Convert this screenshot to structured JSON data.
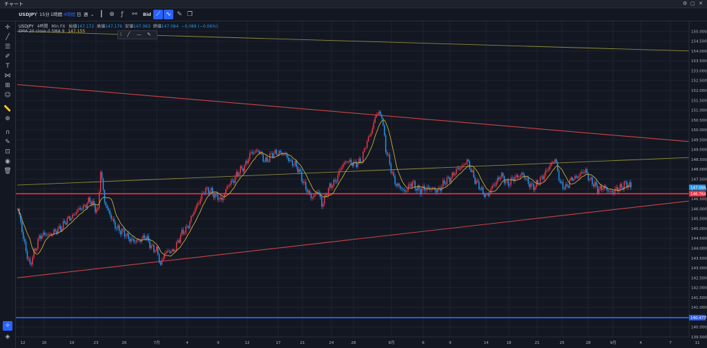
{
  "window": {
    "title": "チャート"
  },
  "toolbar": {
    "symbol": "USDJPY",
    "timeframes": [
      "15分",
      "1時間",
      "4時間",
      "日",
      "週"
    ],
    "active_timeframe": "4時間",
    "price_source": "Bid"
  },
  "legend": {
    "symbol": "USDJPY",
    "interval": "4時間",
    "broker": "Min FX",
    "open_label": "始値",
    "open_value": "147.172",
    "high_label": "高値",
    "high_value": "147.176",
    "low_label": "安値",
    "low_value": "147.063",
    "close_label": "終値",
    "close_value": "147.084",
    "change": "−0.089 (−0.06%)",
    "indicator_label": "EMA 20 close 0 SMA 9",
    "indicator_value": "147.155"
  },
  "chart_data": {
    "type": "candlestick",
    "symbol": "USDJPY",
    "interval": "4時間",
    "y_range": [
      139.5,
      155.5
    ],
    "y_ticks": [
      "155.000",
      "154.500",
      "154.000",
      "153.500",
      "153.000",
      "152.500",
      "152.000",
      "151.500",
      "151.000",
      "150.500",
      "150.000",
      "149.500",
      "149.000",
      "148.500",
      "148.000",
      "147.500",
      "147.000",
      "146.500",
      "146.000",
      "145.500",
      "145.000",
      "144.500",
      "144.000",
      "143.500",
      "143.000",
      "142.500",
      "142.000",
      "141.500",
      "141.000",
      "140.500",
      "140.000",
      "139.500"
    ],
    "x_ticks": [
      "12",
      "16",
      "19",
      "23",
      "26",
      "7月",
      "4",
      "9",
      "12",
      "17",
      "21",
      "24",
      "28",
      "8月",
      "6",
      "9",
      "14",
      "18",
      "21",
      "25",
      "28",
      "9月",
      "4",
      "7",
      "11"
    ],
    "path": [
      [
        0,
        146.0
      ],
      [
        4,
        144.5
      ],
      [
        9,
        143.1
      ],
      [
        16,
        144.6
      ],
      [
        28,
        144.8
      ],
      [
        40,
        145.6
      ],
      [
        54,
        146.4
      ],
      [
        60,
        145.9
      ],
      [
        62,
        147.9
      ],
      [
        65,
        146.4
      ],
      [
        72,
        145.2
      ],
      [
        82,
        144.6
      ],
      [
        88,
        144.3
      ],
      [
        95,
        144.6
      ],
      [
        100,
        144.1
      ],
      [
        104,
        143.9
      ],
      [
        107,
        143.1
      ],
      [
        110,
        143.8
      ],
      [
        116,
        143.8
      ],
      [
        122,
        144.6
      ],
      [
        128,
        145.2
      ],
      [
        135,
        146.3
      ],
      [
        140,
        146.9
      ],
      [
        144,
        147.0
      ],
      [
        148,
        146.6
      ],
      [
        153,
        146.5
      ],
      [
        158,
        147.2
      ],
      [
        163,
        147.6
      ],
      [
        170,
        148.2
      ],
      [
        175,
        148.8
      ],
      [
        180,
        149.0
      ],
      [
        185,
        148.4
      ],
      [
        190,
        148.7
      ],
      [
        196,
        148.9
      ],
      [
        202,
        148.6
      ],
      [
        208,
        148.2
      ],
      [
        212,
        147.8
      ],
      [
        216,
        147.0
      ],
      [
        220,
        146.6
      ],
      [
        225,
        146.9
      ],
      [
        228,
        146.2
      ],
      [
        232,
        146.9
      ],
      [
        238,
        147.4
      ],
      [
        242,
        148.0
      ],
      [
        247,
        148.5
      ],
      [
        252,
        148.2
      ],
      [
        258,
        148.5
      ],
      [
        262,
        149.4
      ],
      [
        266,
        150.1
      ],
      [
        269,
        150.8
      ],
      [
        273,
        150.8
      ],
      [
        276,
        149.0
      ],
      [
        280,
        148.0
      ],
      [
        284,
        147.2
      ],
      [
        290,
        146.9
      ],
      [
        296,
        147.3
      ],
      [
        302,
        146.9
      ],
      [
        308,
        147.1
      ],
      [
        314,
        146.9
      ],
      [
        320,
        147.3
      ],
      [
        326,
        147.7
      ],
      [
        332,
        148.1
      ],
      [
        337,
        148.4
      ],
      [
        341,
        147.8
      ],
      [
        345,
        147.2
      ],
      [
        349,
        146.8
      ],
      [
        353,
        146.7
      ],
      [
        357,
        147.2
      ],
      [
        362,
        147.7
      ],
      [
        367,
        147.3
      ],
      [
        372,
        147.5
      ],
      [
        378,
        147.8
      ],
      [
        383,
        147.3
      ],
      [
        388,
        147.1
      ],
      [
        393,
        147.6
      ],
      [
        398,
        148.0
      ],
      [
        403,
        148.6
      ],
      [
        407,
        147.2
      ],
      [
        411,
        147.1
      ],
      [
        416,
        147.5
      ],
      [
        421,
        147.7
      ],
      [
        426,
        147.9
      ],
      [
        431,
        147.3
      ],
      [
        435,
        147.0
      ],
      [
        439,
        147.1
      ],
      [
        443,
        146.9
      ],
      [
        447,
        146.9
      ],
      [
        451,
        147.0
      ],
      [
        455,
        147.3
      ],
      [
        460,
        147.1
      ]
    ],
    "channel_upper": [
      [
        25,
        152.3
      ],
      [
        1000,
        149.4
      ]
    ],
    "channel_lower": [
      [
        25,
        142.5
      ],
      [
        1000,
        146.4
      ]
    ],
    "yellow_upper": [
      [
        25,
        155.0
      ],
      [
        1000,
        154.0
      ]
    ],
    "yellow_mid": [
      [
        25,
        147.2
      ],
      [
        1000,
        148.6
      ]
    ],
    "support_level": 146.764,
    "support_label": "146.764",
    "blue_level": 140.477,
    "blue_label": "140.477",
    "last_price": 147.084,
    "last_label": "147.084",
    "colors": {
      "up": "#f23645",
      "down": "#2196f3",
      "ma": "#c9b03a",
      "channel": "#c94545",
      "yellow": "#8e8a3c",
      "blue": "#2962ff"
    }
  }
}
